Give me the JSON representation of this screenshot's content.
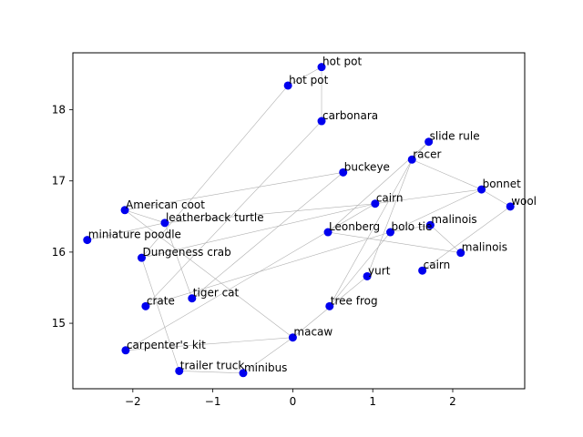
{
  "chart_data": {
    "type": "scatter",
    "xlim": [
      -2.75,
      2.9
    ],
    "ylim": [
      14.08,
      18.8
    ],
    "xticks": [
      -2,
      -1,
      0,
      1,
      2
    ],
    "yticks": [
      15,
      16,
      17,
      18
    ],
    "grid": false,
    "point_color": "#0000ee",
    "edge_color": "#b0b0b0",
    "points": [
      {
        "label": "hot pot",
        "x": 0.36,
        "y": 18.6
      },
      {
        "label": "hot pot",
        "x": -0.06,
        "y": 18.34
      },
      {
        "label": "carbonara",
        "x": 0.36,
        "y": 17.84
      },
      {
        "label": "slide rule",
        "x": 1.7,
        "y": 17.55
      },
      {
        "label": "racer",
        "x": 1.49,
        "y": 17.3
      },
      {
        "label": "buckeye",
        "x": 0.63,
        "y": 17.12
      },
      {
        "label": "bonnet",
        "x": 2.36,
        "y": 16.88
      },
      {
        "label": "cairn",
        "x": 1.03,
        "y": 16.68
      },
      {
        "label": "wool",
        "x": 2.72,
        "y": 16.64
      },
      {
        "label": "American coot",
        "x": -2.1,
        "y": 16.59
      },
      {
        "label": "leatherback turtle",
        "x": -1.6,
        "y": 16.41
      },
      {
        "label": "malinois",
        "x": 1.72,
        "y": 16.38
      },
      {
        "label": "Leonberg",
        "x": 0.44,
        "y": 16.28
      },
      {
        "label": "bolo tie",
        "x": 1.22,
        "y": 16.28
      },
      {
        "label": "miniature poodle",
        "x": -2.57,
        "y": 16.17
      },
      {
        "label": "malinois",
        "x": 2.1,
        "y": 15.99
      },
      {
        "label": "Dungeness crab",
        "x": -1.89,
        "y": 15.92
      },
      {
        "label": "cairn",
        "x": 1.62,
        "y": 15.74
      },
      {
        "label": "yurt",
        "x": 0.93,
        "y": 15.66
      },
      {
        "label": "tiger cat",
        "x": -1.26,
        "y": 15.35
      },
      {
        "label": "crate",
        "x": -1.84,
        "y": 15.24
      },
      {
        "label": "tree frog",
        "x": 0.46,
        "y": 15.24
      },
      {
        "label": "macaw",
        "x": 0.0,
        "y": 14.8
      },
      {
        "label": "carpenter's kit",
        "x": -2.09,
        "y": 14.62
      },
      {
        "label": "trailer truck",
        "x": -1.42,
        "y": 14.33
      },
      {
        "label": "minibus",
        "x": -0.62,
        "y": 14.3
      }
    ],
    "edges": [
      [
        0,
        1
      ],
      [
        0,
        2
      ],
      [
        1,
        16
      ],
      [
        2,
        20
      ],
      [
        3,
        4
      ],
      [
        3,
        12
      ],
      [
        4,
        18
      ],
      [
        4,
        21
      ],
      [
        4,
        6
      ],
      [
        5,
        9
      ],
      [
        5,
        19
      ],
      [
        6,
        7
      ],
      [
        6,
        8
      ],
      [
        6,
        13
      ],
      [
        7,
        16
      ],
      [
        7,
        23
      ],
      [
        8,
        17
      ],
      [
        9,
        10
      ],
      [
        9,
        22
      ],
      [
        10,
        19
      ],
      [
        10,
        14
      ],
      [
        10,
        7
      ],
      [
        11,
        13
      ],
      [
        11,
        15
      ],
      [
        12,
        15
      ],
      [
        13,
        20
      ],
      [
        13,
        21
      ],
      [
        16,
        24
      ],
      [
        22,
        23
      ],
      [
        22,
        25
      ],
      [
        22,
        18
      ],
      [
        24,
        25
      ]
    ]
  }
}
